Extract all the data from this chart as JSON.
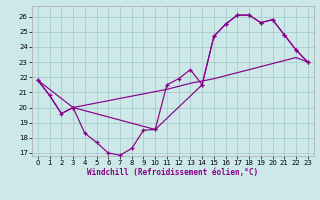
{
  "background_color": "#cce8e8",
  "grid_color": "#aacccc",
  "line_color": "#880088",
  "xlim": [
    -0.5,
    23.5
  ],
  "ylim": [
    16.8,
    26.7
  ],
  "ytick_vals": [
    17,
    18,
    19,
    20,
    21,
    22,
    23,
    24,
    25,
    26
  ],
  "xtick_vals": [
    0,
    1,
    2,
    3,
    4,
    5,
    6,
    7,
    8,
    9,
    10,
    11,
    12,
    13,
    14,
    15,
    16,
    17,
    18,
    19,
    20,
    21,
    22,
    23
  ],
  "curve1_x": [
    0,
    1,
    2,
    3,
    4,
    5,
    6,
    7,
    8,
    9,
    10,
    11,
    12,
    13,
    14,
    15,
    16,
    17,
    18,
    19,
    20,
    21,
    22,
    23
  ],
  "curve1_y": [
    21.8,
    20.8,
    19.6,
    20.0,
    18.3,
    17.7,
    17.0,
    16.85,
    17.3,
    18.5,
    18.55,
    21.5,
    21.9,
    22.5,
    21.5,
    24.7,
    25.5,
    26.1,
    26.1,
    25.6,
    25.8,
    24.8,
    23.8,
    23.0
  ],
  "curve3_x": [
    0,
    3,
    10,
    14,
    15,
    16,
    17,
    18,
    19,
    20,
    21,
    22,
    23
  ],
  "curve3_y": [
    21.8,
    20.0,
    18.55,
    21.5,
    24.7,
    25.5,
    26.1,
    26.1,
    25.6,
    25.8,
    24.8,
    23.8,
    23.0
  ],
  "curve4_x": [
    0,
    1,
    2,
    3,
    4,
    5,
    6,
    7,
    8,
    9,
    10,
    11,
    12,
    13,
    14,
    15,
    16,
    17,
    18,
    19,
    20,
    21,
    22,
    23
  ],
  "curve4_y": [
    21.8,
    20.8,
    19.6,
    20.0,
    20.15,
    20.3,
    20.45,
    20.6,
    20.75,
    20.9,
    21.05,
    21.2,
    21.4,
    21.6,
    21.75,
    21.9,
    22.1,
    22.3,
    22.5,
    22.7,
    22.9,
    23.1,
    23.3,
    23.0
  ],
  "xlabel": "Windchill (Refroidissement éolien,°C)"
}
